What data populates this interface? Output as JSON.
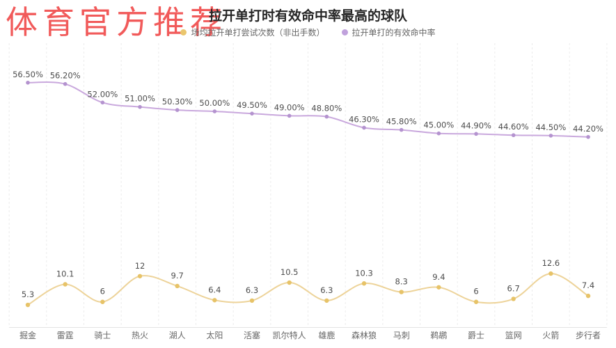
{
  "watermark": {
    "text": "体育官方推荐",
    "color": "#f15a5a"
  },
  "header": {
    "title": "拉开单打时有效命中率最高的球队"
  },
  "legend": {
    "items": [
      {
        "label": "场均拉开单打尝试次数（非出手数）",
        "color": "#eac66d"
      },
      {
        "label": "拉开单打的有效命中率",
        "color": "#c0a1dc"
      }
    ]
  },
  "colors": {
    "grid": "#ececec",
    "axis_line": "#e3e3e3",
    "value_label": "#4d4d4d",
    "x_label": "#666666"
  },
  "chart_data": {
    "type": "line",
    "title": "拉开单打时有效命中率最高的球队",
    "xlabel": "",
    "ylabel": "",
    "grid": "vertical-dashed",
    "legend_position": "top",
    "categories": [
      "掘金",
      "雷霆",
      "骑士",
      "热火",
      "湖人",
      "太阳",
      "活塞",
      "凯尔特人",
      "雄鹿",
      "森林狼",
      "马刺",
      "鹈鹕",
      "爵士",
      "篮网",
      "火箭",
      "步行者"
    ],
    "series": [
      {
        "name": "场均拉开单打尝试次数（非出手数）",
        "values": [
          5.3,
          10.1,
          6,
          12,
          9.7,
          6.4,
          6.3,
          10.5,
          6.3,
          10.3,
          8.3,
          9.4,
          6,
          6.7,
          12.6,
          7.4
        ],
        "labels": [
          "5.3",
          "10.1",
          "6",
          "12",
          "9.7",
          "6.4",
          "6.3",
          "10.5",
          "6.3",
          "10.3",
          "8.3",
          "9.4",
          "6",
          "6.7",
          "12.6",
          "7.4"
        ],
        "line_color": "#edd399",
        "marker_color": "#e7c368",
        "approx_range": [
          0,
          13
        ]
      },
      {
        "name": "拉开单打的有效命中率",
        "values": [
          56.5,
          56.2,
          52.0,
          51.0,
          50.3,
          50.0,
          49.5,
          49.0,
          48.8,
          46.3,
          45.8,
          45.0,
          44.9,
          44.6,
          44.5,
          44.2
        ],
        "labels": [
          "56.50%",
          "56.20%",
          "52.00%",
          "51.00%",
          "50.30%",
          "50.00%",
          "49.50%",
          "49.00%",
          "48.80%",
          "46.30%",
          "45.80%",
          "45.00%",
          "44.90%",
          "44.60%",
          "44.50%",
          "44.20%"
        ],
        "line_color": "#c9a8dd",
        "marker_color": "#b493cf",
        "approx_range": [
          0,
          60
        ]
      }
    ]
  }
}
